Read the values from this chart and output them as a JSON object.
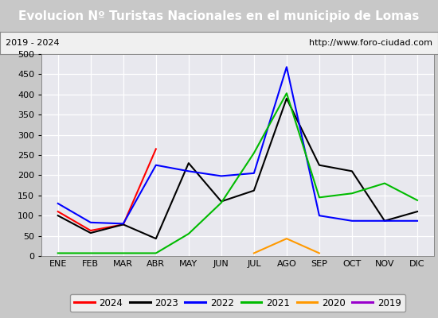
{
  "title": "Evolucion Nº Turistas Nacionales en el municipio de Lomas",
  "subtitle_left": "2019 - 2024",
  "subtitle_right": "http://www.foro-ciudad.com",
  "months": [
    "ENE",
    "FEB",
    "MAR",
    "ABR",
    "MAY",
    "JUN",
    "JUL",
    "AGO",
    "SEP",
    "OCT",
    "NOV",
    "DIC"
  ],
  "series": [
    {
      "year": "2024",
      "values": [
        110,
        63,
        78,
        265,
        null,
        null,
        null,
        null,
        null,
        null,
        null,
        null
      ],
      "color": "#ff0000"
    },
    {
      "year": "2023",
      "values": [
        100,
        57,
        78,
        43,
        230,
        135,
        162,
        390,
        225,
        210,
        87,
        110
      ],
      "color": "#000000"
    },
    {
      "year": "2022",
      "values": [
        130,
        83,
        80,
        225,
        210,
        198,
        205,
        468,
        100,
        87,
        87,
        87
      ],
      "color": "#0000ff"
    },
    {
      "year": "2021",
      "values": [
        7,
        7,
        7,
        7,
        55,
        132,
        255,
        403,
        145,
        155,
        180,
        138
      ],
      "color": "#00bb00"
    },
    {
      "year": "2020",
      "values": [
        null,
        null,
        null,
        null,
        null,
        null,
        7,
        43,
        7,
        null,
        null,
        null
      ],
      "color": "#ff9900"
    },
    {
      "year": "2019",
      "values": [
        null,
        null,
        null,
        null,
        null,
        null,
        null,
        null,
        null,
        null,
        null,
        null
      ],
      "color": "#9900cc"
    }
  ],
  "ylim": [
    0,
    500
  ],
  "yticks": [
    0,
    50,
    100,
    150,
    200,
    250,
    300,
    350,
    400,
    450,
    500
  ],
  "title_bg": "#4a7cc7",
  "title_color": "#ffffff",
  "sub_bg": "#f0f0f0",
  "plot_bg": "#e8e8ee",
  "grid_color": "#ffffff",
  "outer_bg": "#c8c8c8",
  "title_fontsize": 11,
  "tick_fontsize": 8,
  "legend_fontsize": 8.5
}
